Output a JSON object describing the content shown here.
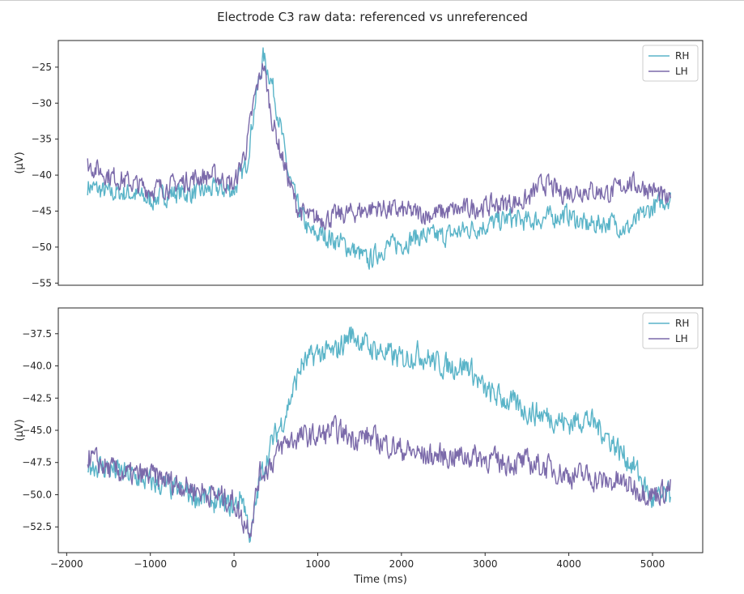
{
  "figure": {
    "title": "Electrode C3 raw data: referenced vs unreferenced"
  },
  "chart_data": [
    {
      "type": "line",
      "title": "",
      "xlabel": "",
      "ylabel": "(μV)",
      "xlim": [
        -2100,
        5600
      ],
      "ylim": [
        -55.3,
        -21.3
      ],
      "yticks": [
        -25,
        -30,
        -35,
        -40,
        -45,
        -50,
        -55
      ],
      "ytick_labels": [
        "−25",
        "−30",
        "−35",
        "−40",
        "−45",
        "−50",
        "−55"
      ],
      "show_xticks": false,
      "grid": false,
      "legend": "top-right",
      "series": [
        {
          "name": "RH",
          "color": "#5ab4c8",
          "x": [
            -1750,
            -1500,
            -1250,
            -1000,
            -750,
            -500,
            -250,
            0,
            150,
            250,
            350,
            450,
            550,
            650,
            750,
            900,
            1100,
            1300,
            1500,
            1600,
            1800,
            2000,
            2200,
            2500,
            2800,
            3000,
            3300,
            3500,
            3700,
            4000,
            4200,
            4500,
            4700,
            5000,
            5220
          ],
          "y": [
            -41.5,
            -42.5,
            -42.5,
            -43.5,
            -42.5,
            -42.5,
            -42.0,
            -42.0,
            -38.5,
            -30.0,
            -23.5,
            -27.0,
            -33.0,
            -40.0,
            -44.0,
            -48.0,
            -48.5,
            -49.5,
            -51.0,
            -52.0,
            -50.0,
            -49.5,
            -48.5,
            -48.5,
            -47.5,
            -47.0,
            -46.0,
            -46.5,
            -46.0,
            -45.5,
            -47.0,
            -46.5,
            -47.5,
            -44.5,
            -43.0
          ]
        },
        {
          "name": "LH",
          "color": "#7b6aaa",
          "x": [
            -1750,
            -1500,
            -1250,
            -1000,
            -750,
            -500,
            -250,
            0,
            150,
            250,
            350,
            450,
            550,
            650,
            750,
            900,
            1100,
            1300,
            1500,
            1700,
            2000,
            2300,
            2600,
            2900,
            3200,
            3500,
            3700,
            3900,
            4200,
            4500,
            4700,
            5000,
            5220
          ],
          "y": [
            -38.5,
            -40.0,
            -41.0,
            -42.0,
            -41.5,
            -40.5,
            -40.0,
            -41.5,
            -36.0,
            -29.0,
            -24.5,
            -32.0,
            -36.5,
            -40.5,
            -44.5,
            -46.0,
            -46.0,
            -45.5,
            -45.0,
            -44.5,
            -45.0,
            -45.5,
            -45.0,
            -44.5,
            -44.0,
            -43.5,
            -41.0,
            -42.5,
            -42.0,
            -42.5,
            -41.0,
            -42.0,
            -44.0
          ]
        }
      ]
    },
    {
      "type": "line",
      "title": "",
      "xlabel": "Time (ms)",
      "ylabel": "(μV)",
      "xlim": [
        -2100,
        5600
      ],
      "ylim": [
        -54.5,
        -35.5
      ],
      "xticks": [
        -2000,
        -1000,
        0,
        1000,
        2000,
        3000,
        4000,
        5000
      ],
      "xtick_labels": [
        "−2000",
        "−1000",
        "0",
        "1000",
        "2000",
        "3000",
        "4000",
        "5000"
      ],
      "yticks": [
        -37.5,
        -40.0,
        -42.5,
        -45.0,
        -47.5,
        -50.0,
        -52.5
      ],
      "ytick_labels": [
        "−37.5",
        "−40.0",
        "−42.5",
        "−45.0",
        "−47.5",
        "−50.0",
        "−52.5"
      ],
      "show_xticks": true,
      "grid": false,
      "legend": "top-right",
      "series": [
        {
          "name": "RH",
          "color": "#5ab4c8",
          "x": [
            -1750,
            -1500,
            -1250,
            -1000,
            -750,
            -500,
            -250,
            0,
            100,
            200,
            300,
            450,
            600,
            800,
            1000,
            1200,
            1400,
            1600,
            1800,
            2000,
            2200,
            2500,
            2800,
            3000,
            3200,
            3500,
            3800,
            4000,
            4200,
            4400,
            4600,
            4800,
            5000,
            5220
          ],
          "y": [
            -47.5,
            -48.0,
            -48.5,
            -49.0,
            -49.5,
            -50.0,
            -50.5,
            -51.0,
            -50.0,
            -53.5,
            -49.0,
            -46.0,
            -44.0,
            -40.0,
            -39.0,
            -39.0,
            -37.5,
            -38.5,
            -39.0,
            -39.5,
            -39.0,
            -40.0,
            -40.0,
            -42.0,
            -42.5,
            -43.5,
            -44.0,
            -44.5,
            -44.0,
            -45.0,
            -46.5,
            -48.0,
            -50.5,
            -50.0
          ]
        },
        {
          "name": "LH",
          "color": "#7b6aaa",
          "x": [
            -1750,
            -1500,
            -1250,
            -1000,
            -750,
            -500,
            -250,
            0,
            100,
            200,
            300,
            450,
            600,
            800,
            1000,
            1200,
            1400,
            1600,
            1800,
            2000,
            2300,
            2600,
            2900,
            3200,
            3500,
            3800,
            4000,
            4200,
            4400,
            4600,
            4800,
            5000,
            5220
          ],
          "y": [
            -47.0,
            -48.0,
            -48.5,
            -48.5,
            -49.0,
            -49.5,
            -50.0,
            -50.5,
            -52.0,
            -52.5,
            -48.5,
            -47.5,
            -46.0,
            -45.5,
            -45.5,
            -45.0,
            -45.5,
            -45.5,
            -46.0,
            -46.5,
            -47.0,
            -47.0,
            -47.0,
            -47.5,
            -47.5,
            -48.0,
            -48.5,
            -48.5,
            -49.0,
            -49.0,
            -49.5,
            -50.0,
            -49.5
          ]
        }
      ]
    }
  ]
}
